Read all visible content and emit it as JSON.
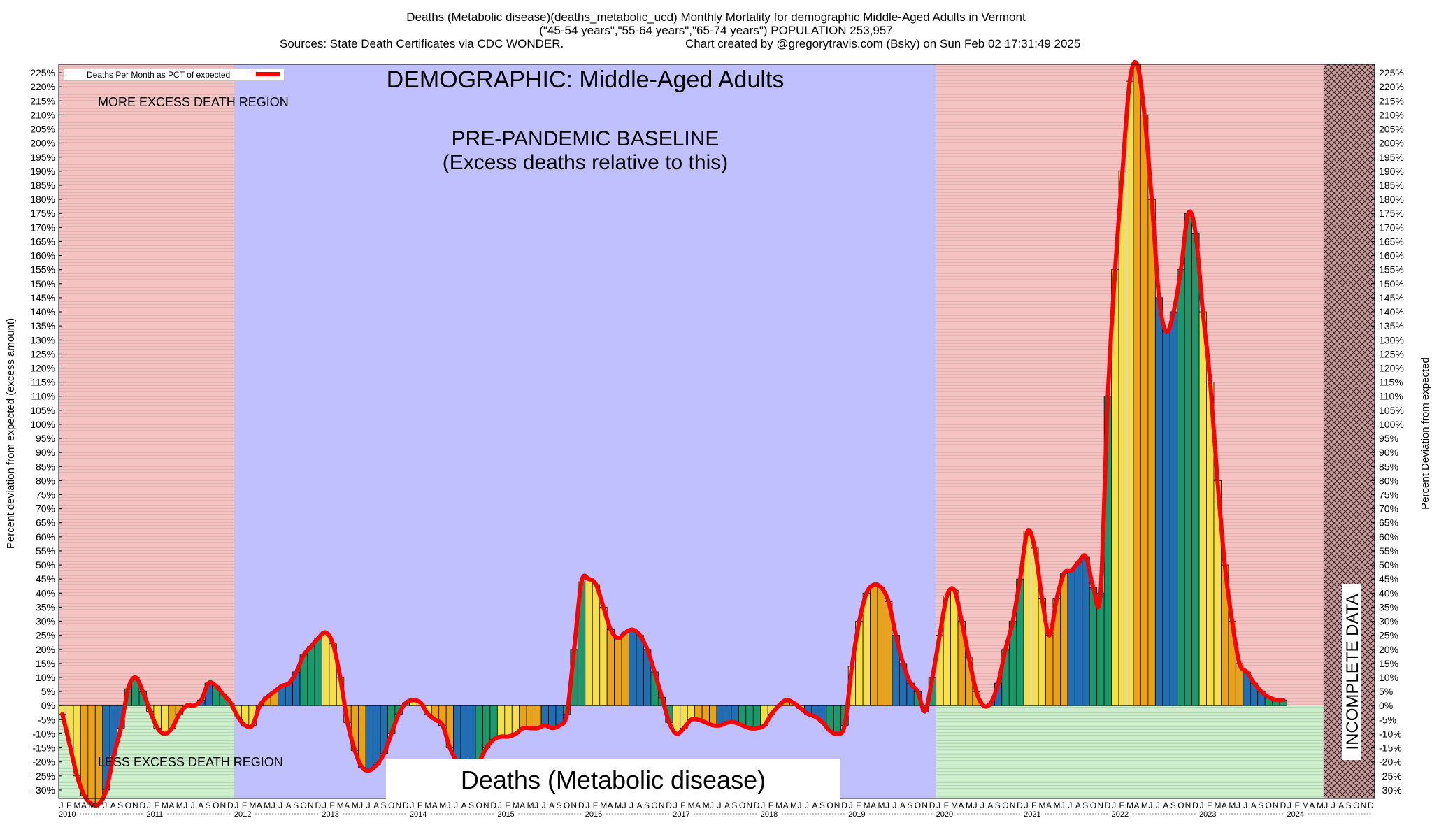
{
  "title_lines": [
    "Deaths (Metabolic disease)(deaths_metabolic_ucd) Monthly Mortality for demographic Middle-Aged Adults in Vermont",
    "(\"45-54 years\",\"55-64 years\",\"65-74 years\") POPULATION 253,957",
    "Sources: State Death Certificates via CDC WONDER.",
    "Chart created by @gregorytravis.com (Bsky) on Sun Feb 02 17:31:49 2025"
  ],
  "annotations": {
    "demographic": "DEMOGRAPHIC: Middle-Aged Adults",
    "baseline_line1": "PRE-PANDEMIC BASELINE",
    "baseline_line2": "(Excess deaths relative to this)",
    "more_excess": "MORE EXCESS DEATH REGION",
    "less_excess": "LESS EXCESS DEATH REGION",
    "incomplete": "INCOMPLETE DATA",
    "cause_box": "Deaths (Metabolic disease)"
  },
  "colors": {
    "excess_region": "#f2c4c4",
    "baseline_region": "#c0c0ff",
    "less_region": "#cdeecd",
    "line": "#ff0000",
    "bar_palette": [
      "#f5e04a",
      "#e8a317",
      "#1f6fb4",
      "#1a9a6c"
    ]
  },
  "chart_data": {
    "type": "bar",
    "y_axis_left_label": "Percent deviation from expected (excess amount)",
    "y_axis_right_label": "Percent Deviation from expected",
    "legend": "Deaths Per Month as PCT of expected",
    "ylim": [
      -33,
      228
    ],
    "ytick_step": 5,
    "ytick_min": -30,
    "ytick_max": 225,
    "x_start": "2010-01",
    "x_end": "2024-12",
    "years": [
      "2010",
      "2011",
      "2012",
      "2013",
      "2014",
      "2015",
      "2016",
      "2017",
      "2018",
      "2019",
      "2020",
      "2021",
      "2022",
      "2023",
      "2024"
    ],
    "month_letters": [
      "J",
      "F",
      "M",
      "A",
      "M",
      "J",
      "J",
      "A",
      "S",
      "O",
      "N",
      "D"
    ],
    "regions": [
      {
        "kind": "more_excess",
        "from": "2010-01",
        "to": "2011-12"
      },
      {
        "kind": "baseline",
        "from": "2012-01",
        "to": "2019-12"
      },
      {
        "kind": "more_excess",
        "from": "2020-01",
        "to": "2024-12"
      },
      {
        "kind": "incomplete",
        "from": "2024-06",
        "to": "2024-12"
      }
    ],
    "values": [
      -3,
      -14,
      -25,
      -32,
      -35,
      -35,
      -30,
      -18,
      -8,
      6,
      10,
      5,
      -2,
      -8,
      -10,
      -8,
      -3,
      0,
      0,
      2,
      8,
      7,
      4,
      1,
      -4,
      -7,
      -7,
      0,
      3,
      5,
      7,
      8,
      12,
      18,
      21,
      24,
      26,
      22,
      10,
      -6,
      -16,
      -22,
      -23,
      -21,
      -17,
      -10,
      -3,
      1,
      2,
      1,
      -3,
      -5,
      -7,
      -15,
      -20,
      -22,
      -23,
      -20,
      -15,
      -12,
      -11,
      -11,
      -10,
      -8,
      -8,
      -8,
      -7,
      -8,
      -7,
      -3,
      20,
      44,
      45,
      43,
      35,
      27,
      24,
      26,
      27,
      25,
      20,
      12,
      3,
      -6,
      -10,
      -8,
      -5,
      -5,
      -6,
      -7,
      -7,
      -6,
      -6,
      -7,
      -8,
      -8,
      -7,
      -3,
      0,
      2,
      1,
      -1,
      -3,
      -4,
      -6,
      -9,
      -10,
      -7,
      14,
      30,
      40,
      43,
      42,
      37,
      25,
      15,
      8,
      5,
      -2,
      10,
      25,
      39,
      41,
      30,
      17,
      5,
      0,
      1,
      8,
      20,
      30,
      45,
      62,
      56,
      38,
      25,
      38,
      47,
      48,
      51,
      53,
      42,
      40,
      110,
      155,
      190,
      222,
      228,
      210,
      180,
      145,
      133,
      140,
      155,
      175,
      168,
      140,
      115,
      80,
      50,
      30,
      15,
      12,
      8,
      5,
      3,
      2,
      2
    ]
  }
}
